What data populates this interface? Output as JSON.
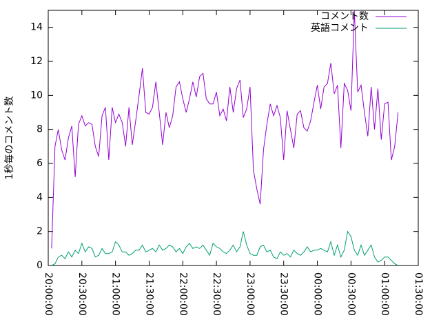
{
  "chart_data": {
    "type": "line",
    "ylabel": "1秒毎のコメント数",
    "x": [
      "20:03:00",
      "20:06:00",
      "20:09:00",
      "20:12:00",
      "20:15:00",
      "20:18:00",
      "20:21:00",
      "20:24:00",
      "20:27:00",
      "20:30:00",
      "20:33:00",
      "20:36:00",
      "20:39:00",
      "20:42:00",
      "20:45:00",
      "20:48:00",
      "20:51:00",
      "20:54:00",
      "20:57:00",
      "21:00:00",
      "21:03:00",
      "21:06:00",
      "21:09:00",
      "21:12:00",
      "21:15:00",
      "21:18:00",
      "21:21:00",
      "21:24:00",
      "21:27:00",
      "21:30:00",
      "21:33:00",
      "21:36:00",
      "21:39:00",
      "21:42:00",
      "21:45:00",
      "21:48:00",
      "21:51:00",
      "21:54:00",
      "21:57:00",
      "22:00:00",
      "22:03:00",
      "22:06:00",
      "22:09:00",
      "22:12:00",
      "22:15:00",
      "22:18:00",
      "22:21:00",
      "22:24:00",
      "22:27:00",
      "22:30:00",
      "22:33:00",
      "22:36:00",
      "22:39:00",
      "22:42:00",
      "22:45:00",
      "22:48:00",
      "22:51:00",
      "22:54:00",
      "22:57:00",
      "23:00:00",
      "23:03:00",
      "23:06:00",
      "23:09:00",
      "23:12:00",
      "23:15:00",
      "23:18:00",
      "23:21:00",
      "23:24:00",
      "23:27:00",
      "23:30:00",
      "23:33:00",
      "23:36:00",
      "23:39:00",
      "23:42:00",
      "23:45:00",
      "23:48:00",
      "23:51:00",
      "23:54:00",
      "23:57:00",
      "00:00:00",
      "00:03:00",
      "00:06:00",
      "00:09:00",
      "00:12:00",
      "00:15:00",
      "00:18:00",
      "00:21:00",
      "00:24:00",
      "00:27:00",
      "00:30:00",
      "00:33:00",
      "00:36:00",
      "00:39:00",
      "00:42:00",
      "00:45:00",
      "00:48:00",
      "00:51:00",
      "00:54:00",
      "00:57:00",
      "01:00:00",
      "01:03:00",
      "01:06:00",
      "01:09:00",
      "01:12:00"
    ],
    "series": [
      {
        "name": "コメント数",
        "color": "#9400d3",
        "values": [
          1.0,
          7.0,
          8.0,
          6.8,
          6.2,
          7.5,
          8.2,
          5.2,
          8.3,
          8.8,
          8.2,
          8.4,
          8.3,
          7.0,
          6.4,
          8.8,
          9.3,
          6.2,
          9.3,
          8.4,
          8.9,
          8.4,
          7.0,
          9.3,
          7.1,
          8.5,
          10.0,
          11.6,
          9.0,
          8.9,
          9.3,
          10.8,
          9.0,
          7.1,
          9.0,
          8.1,
          8.8,
          10.5,
          10.8,
          9.8,
          9.0,
          9.8,
          10.8,
          9.9,
          11.1,
          11.3,
          9.8,
          9.5,
          9.5,
          10.2,
          8.8,
          9.2,
          8.5,
          10.5,
          9.0,
          10.4,
          10.9,
          8.7,
          9.2,
          10.5,
          5.6,
          4.5,
          3.6,
          6.8,
          8.3,
          9.5,
          8.8,
          9.4,
          8.7,
          6.2,
          9.1,
          8.0,
          6.9,
          8.9,
          9.1,
          8.1,
          7.9,
          8.5,
          9.6,
          10.6,
          9.2,
          10.5,
          10.7,
          11.9,
          10.1,
          10.6,
          6.9,
          10.7,
          10.3,
          9.1,
          15.0,
          10.2,
          10.6,
          9.0,
          7.6,
          10.5,
          8.0,
          10.4,
          7.4,
          9.5,
          9.6,
          6.2,
          7.0,
          9.0
        ]
      },
      {
        "name": "英語コメント",
        "color": "#009e73",
        "values": [
          0,
          0.1,
          0.5,
          0.6,
          0.4,
          0.8,
          0.5,
          0.9,
          0.7,
          1.3,
          0.8,
          1.1,
          1.0,
          0.5,
          0.6,
          1.0,
          0.7,
          0.7,
          0.8,
          1.4,
          1.2,
          0.8,
          0.8,
          0.6,
          0.7,
          0.9,
          0.9,
          1.2,
          0.8,
          0.9,
          1.0,
          0.8,
          1.2,
          0.9,
          1.0,
          1.2,
          1.1,
          0.8,
          1.0,
          0.7,
          1.1,
          1.3,
          1.0,
          1.1,
          1.0,
          1.2,
          0.9,
          0.6,
          1.3,
          1.1,
          1.0,
          0.8,
          0.7,
          0.9,
          1.2,
          0.8,
          1.1,
          2.0,
          1.2,
          0.7,
          0.6,
          0.6,
          1.1,
          1.2,
          0.8,
          0.9,
          0.5,
          0.4,
          0.8,
          0.6,
          0.7,
          0.5,
          0.9,
          0.7,
          0.6,
          0.8,
          1.1,
          0.8,
          0.9,
          0.9,
          1.0,
          0.9,
          0.8,
          1.4,
          0.6,
          1.2,
          0.5,
          0.9,
          2.0,
          1.7,
          0.9,
          0.6,
          1.2,
          0.6,
          0.9,
          1.2,
          0.5,
          0.2,
          0.3,
          0.5,
          0.5,
          0.3,
          0.1,
          0.0
        ]
      }
    ],
    "xlim": [
      "20:00:00",
      "01:30:00"
    ],
    "xticks": [
      "20:00:00",
      "20:30:00",
      "21:00:00",
      "21:30:00",
      "22:00:00",
      "22:30:00",
      "23:00:00",
      "23:30:00",
      "00:00:00",
      "00:30:00",
      "01:00:00",
      "01:30:00"
    ],
    "ylim": [
      0,
      15
    ],
    "yticks": [
      0,
      2,
      4,
      6,
      8,
      10,
      12,
      14
    ],
    "grid": false,
    "legend": "top-right"
  }
}
